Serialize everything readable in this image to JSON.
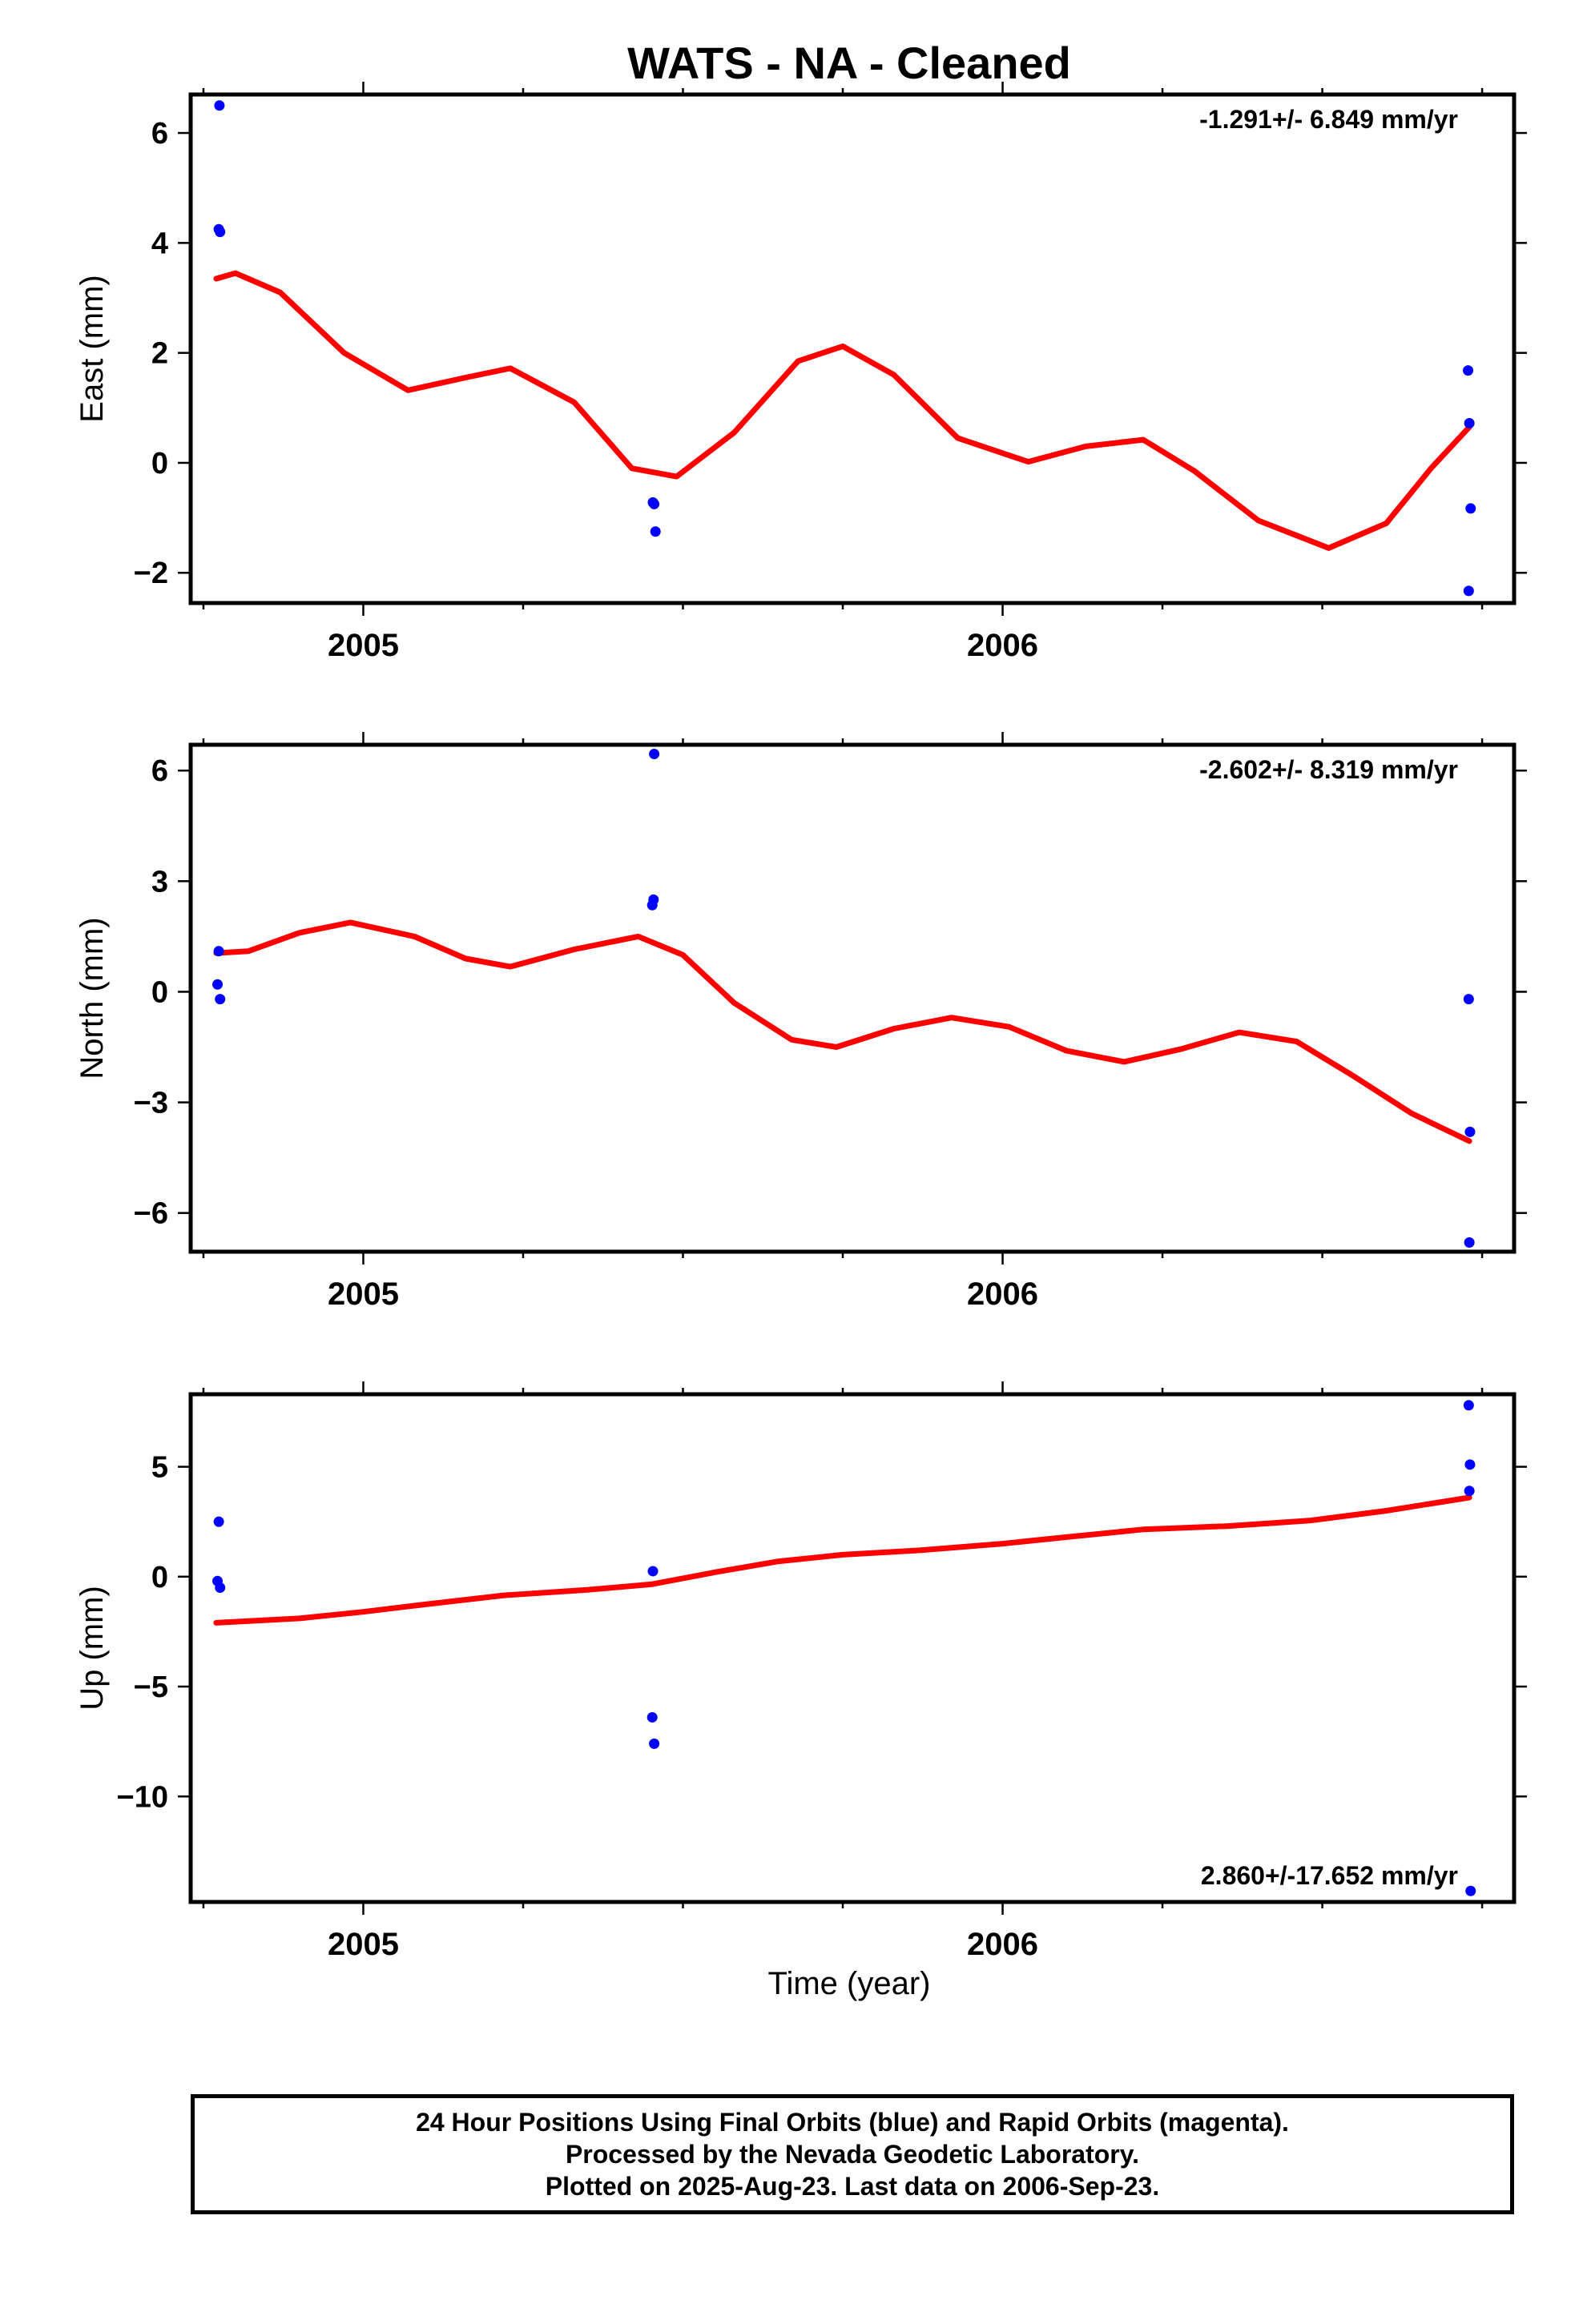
{
  "title": "WATS  - NA - Cleaned",
  "xlabel": "Time (year)",
  "footer": {
    "line1": "24 Hour Positions Using Final Orbits (blue) and Rapid Orbits (magenta).",
    "line2": "Processed by the Nevada Geodetic Laboratory.",
    "line3": "Plotted on 2025-Aug-23. Last data on 2006-Sep-23."
  },
  "colors": {
    "data_points": "#0000ff",
    "fit_line": "#ff0000",
    "frame": "#000000"
  },
  "chart_data": [
    {
      "type": "scatter",
      "panel": "east",
      "ylabel": "East (mm)",
      "rate_text": "-1.291+/- 6.849 mm/yr",
      "xlim": [
        2004.73,
        2006.8
      ],
      "ylim": [
        -2.55,
        6.7
      ],
      "yticks": [
        -2,
        0,
        2,
        4,
        6
      ],
      "yticklabels": [
        "−2",
        "0",
        "2",
        "4",
        "6"
      ],
      "xticks_major": [
        2005,
        2006
      ],
      "xticklabels": [
        "2005",
        "2006"
      ],
      "points": [
        {
          "x": 2004.775,
          "y": 6.5
        },
        {
          "x": 2004.774,
          "y": 4.25
        },
        {
          "x": 2004.776,
          "y": 4.2
        },
        {
          "x": 2005.453,
          "y": -0.72
        },
        {
          "x": 2005.455,
          "y": -0.75
        },
        {
          "x": 2005.457,
          "y": -1.25
        },
        {
          "x": 2006.728,
          "y": 1.68
        },
        {
          "x": 2006.73,
          "y": 0.72
        },
        {
          "x": 2006.732,
          "y": -0.83
        },
        {
          "x": 2006.729,
          "y": -2.33
        }
      ],
      "fit": [
        {
          "x": 2004.77,
          "y": 3.35
        },
        {
          "x": 2004.8,
          "y": 3.45
        },
        {
          "x": 2004.87,
          "y": 3.1
        },
        {
          "x": 2004.97,
          "y": 2.0
        },
        {
          "x": 2005.07,
          "y": 1.32
        },
        {
          "x": 2005.16,
          "y": 1.55
        },
        {
          "x": 2005.23,
          "y": 1.72
        },
        {
          "x": 2005.33,
          "y": 1.1
        },
        {
          "x": 2005.42,
          "y": -0.1
        },
        {
          "x": 2005.49,
          "y": -0.25
        },
        {
          "x": 2005.58,
          "y": 0.55
        },
        {
          "x": 2005.68,
          "y": 1.85
        },
        {
          "x": 2005.75,
          "y": 2.12
        },
        {
          "x": 2005.83,
          "y": 1.6
        },
        {
          "x": 2005.93,
          "y": 0.45
        },
        {
          "x": 2006.04,
          "y": 0.02
        },
        {
          "x": 2006.13,
          "y": 0.3
        },
        {
          "x": 2006.22,
          "y": 0.42
        },
        {
          "x": 2006.3,
          "y": -0.15
        },
        {
          "x": 2006.4,
          "y": -1.05
        },
        {
          "x": 2006.51,
          "y": -1.55
        },
        {
          "x": 2006.6,
          "y": -1.1
        },
        {
          "x": 2006.67,
          "y": -0.1
        },
        {
          "x": 2006.73,
          "y": 0.65
        }
      ]
    },
    {
      "type": "scatter",
      "panel": "north",
      "ylabel": "North (mm)",
      "rate_text": "-2.602+/- 8.319 mm/yr",
      "xlim": [
        2004.73,
        2006.8
      ],
      "ylim": [
        -7.05,
        6.7
      ],
      "yticks": [
        -6,
        -3,
        0,
        3,
        6
      ],
      "yticklabels": [
        "−6",
        "−3",
        "0",
        "3",
        "6"
      ],
      "xticks_major": [
        2005,
        2006
      ],
      "xticklabels": [
        "2005",
        "2006"
      ],
      "points": [
        {
          "x": 2004.774,
          "y": 1.1
        },
        {
          "x": 2004.772,
          "y": 0.2
        },
        {
          "x": 2004.776,
          "y": -0.2
        },
        {
          "x": 2005.455,
          "y": 6.45
        },
        {
          "x": 2005.454,
          "y": 2.5
        },
        {
          "x": 2005.452,
          "y": 2.35
        },
        {
          "x": 2006.729,
          "y": -0.2
        },
        {
          "x": 2006.731,
          "y": -3.8
        },
        {
          "x": 2006.73,
          "y": -6.8
        }
      ],
      "fit": [
        {
          "x": 2004.77,
          "y": 1.05
        },
        {
          "x": 2004.82,
          "y": 1.1
        },
        {
          "x": 2004.9,
          "y": 1.6
        },
        {
          "x": 2004.98,
          "y": 1.88
        },
        {
          "x": 2005.08,
          "y": 1.5
        },
        {
          "x": 2005.16,
          "y": 0.9
        },
        {
          "x": 2005.23,
          "y": 0.68
        },
        {
          "x": 2005.33,
          "y": 1.15
        },
        {
          "x": 2005.43,
          "y": 1.5
        },
        {
          "x": 2005.5,
          "y": 1.0
        },
        {
          "x": 2005.58,
          "y": -0.3
        },
        {
          "x": 2005.67,
          "y": -1.3
        },
        {
          "x": 2005.74,
          "y": -1.5
        },
        {
          "x": 2005.83,
          "y": -1.0
        },
        {
          "x": 2005.92,
          "y": -0.7
        },
        {
          "x": 2006.01,
          "y": -0.95
        },
        {
          "x": 2006.1,
          "y": -1.6
        },
        {
          "x": 2006.19,
          "y": -1.9
        },
        {
          "x": 2006.28,
          "y": -1.55
        },
        {
          "x": 2006.37,
          "y": -1.1
        },
        {
          "x": 2006.46,
          "y": -1.35
        },
        {
          "x": 2006.55,
          "y": -2.3
        },
        {
          "x": 2006.64,
          "y": -3.3
        },
        {
          "x": 2006.73,
          "y": -4.05
        }
      ]
    },
    {
      "type": "scatter",
      "panel": "up",
      "ylabel": "Up (mm)",
      "rate_text": "2.860+/-17.652 mm/yr",
      "xlim": [
        2004.73,
        2006.8
      ],
      "ylim": [
        -14.8,
        8.3
      ],
      "yticks": [
        -10,
        -5,
        0,
        5
      ],
      "yticklabels": [
        "−10",
        "−5",
        "0",
        "5"
      ],
      "xticks_major": [
        2005,
        2006
      ],
      "xticklabels": [
        "2005",
        "2006"
      ],
      "points": [
        {
          "x": 2004.774,
          "y": 2.5
        },
        {
          "x": 2004.772,
          "y": -0.2
        },
        {
          "x": 2004.776,
          "y": -0.5
        },
        {
          "x": 2005.453,
          "y": 0.25
        },
        {
          "x": 2005.452,
          "y": -6.4
        },
        {
          "x": 2005.455,
          "y": -7.6
        },
        {
          "x": 2006.729,
          "y": 7.8
        },
        {
          "x": 2006.731,
          "y": 5.1
        },
        {
          "x": 2006.73,
          "y": 3.9
        },
        {
          "x": 2006.732,
          "y": -14.3
        }
      ],
      "fit": [
        {
          "x": 2004.77,
          "y": -2.1
        },
        {
          "x": 2004.9,
          "y": -1.9
        },
        {
          "x": 2005.0,
          "y": -1.6
        },
        {
          "x": 2005.1,
          "y": -1.25
        },
        {
          "x": 2005.22,
          "y": -0.85
        },
        {
          "x": 2005.35,
          "y": -0.6
        },
        {
          "x": 2005.45,
          "y": -0.35
        },
        {
          "x": 2005.55,
          "y": 0.2
        },
        {
          "x": 2005.65,
          "y": 0.7
        },
        {
          "x": 2005.75,
          "y": 1.0
        },
        {
          "x": 2005.87,
          "y": 1.2
        },
        {
          "x": 2006.0,
          "y": 1.5
        },
        {
          "x": 2006.1,
          "y": 1.8
        },
        {
          "x": 2006.22,
          "y": 2.15
        },
        {
          "x": 2006.35,
          "y": 2.3
        },
        {
          "x": 2006.48,
          "y": 2.55
        },
        {
          "x": 2006.6,
          "y": 3.0
        },
        {
          "x": 2006.73,
          "y": 3.6
        }
      ]
    }
  ]
}
